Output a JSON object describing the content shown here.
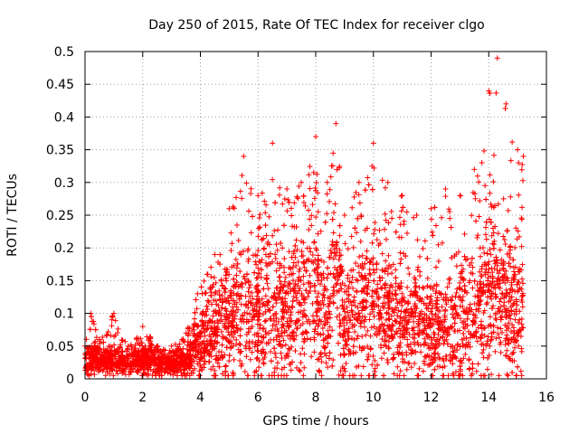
{
  "chart_data": {
    "type": "scatter",
    "title": "Day 250 of 2015, Rate Of TEC Index for receiver clgo",
    "xlabel": "GPS time / hours",
    "ylabel": "ROTI / TECUs",
    "xlim": [
      0,
      16
    ],
    "ylim": [
      0,
      0.5
    ],
    "xticks": [
      "0",
      "2",
      "4",
      "6",
      "8",
      "10",
      "12",
      "14",
      "16"
    ],
    "yticks": [
      "0",
      "0.05",
      "0.1",
      "0.15",
      "0.2",
      "0.25",
      "0.3",
      "0.35",
      "0.4",
      "0.45",
      "0.5"
    ],
    "grid": true,
    "marker": "+",
    "color": "#ff0000",
    "series": [
      {
        "name": "ROTI",
        "envelope": [
          {
            "x": 0.0,
            "median": 0.025,
            "spread": 0.012,
            "max": 0.05
          },
          {
            "x": 0.2,
            "median": 0.03,
            "spread": 0.015,
            "max": 0.1
          },
          {
            "x": 0.5,
            "median": 0.028,
            "spread": 0.012,
            "max": 0.06
          },
          {
            "x": 1.0,
            "median": 0.03,
            "spread": 0.015,
            "max": 0.1
          },
          {
            "x": 1.5,
            "median": 0.022,
            "spread": 0.01,
            "max": 0.05
          },
          {
            "x": 2.0,
            "median": 0.03,
            "spread": 0.015,
            "max": 0.08
          },
          {
            "x": 2.5,
            "median": 0.025,
            "spread": 0.012,
            "max": 0.05
          },
          {
            "x": 3.0,
            "median": 0.022,
            "spread": 0.01,
            "max": 0.05
          },
          {
            "x": 3.5,
            "median": 0.025,
            "spread": 0.012,
            "max": 0.07
          },
          {
            "x": 3.9,
            "median": 0.05,
            "spread": 0.03,
            "max": 0.13
          },
          {
            "x": 4.5,
            "median": 0.07,
            "spread": 0.045,
            "max": 0.19
          },
          {
            "x": 5.0,
            "median": 0.09,
            "spread": 0.06,
            "max": 0.26
          },
          {
            "x": 5.5,
            "median": 0.1,
            "spread": 0.07,
            "max": 0.34
          },
          {
            "x": 6.0,
            "median": 0.1,
            "spread": 0.06,
            "max": 0.28
          },
          {
            "x": 6.5,
            "median": 0.11,
            "spread": 0.07,
            "max": 0.36
          },
          {
            "x": 7.0,
            "median": 0.1,
            "spread": 0.06,
            "max": 0.29
          },
          {
            "x": 7.5,
            "median": 0.12,
            "spread": 0.07,
            "max": 0.3
          },
          {
            "x": 8.0,
            "median": 0.13,
            "spread": 0.08,
            "max": 0.37
          },
          {
            "x": 8.4,
            "median": 0.08,
            "spread": 0.05,
            "max": 0.3
          },
          {
            "x": 8.7,
            "median": 0.15,
            "spread": 0.08,
            "max": 0.39
          },
          {
            "x": 9.0,
            "median": 0.07,
            "spread": 0.05,
            "max": 0.25
          },
          {
            "x": 9.5,
            "median": 0.1,
            "spread": 0.06,
            "max": 0.3
          },
          {
            "x": 10.0,
            "median": 0.12,
            "spread": 0.07,
            "max": 0.36
          },
          {
            "x": 10.5,
            "median": 0.1,
            "spread": 0.06,
            "max": 0.3
          },
          {
            "x": 11.0,
            "median": 0.08,
            "spread": 0.05,
            "max": 0.28
          },
          {
            "x": 11.5,
            "median": 0.09,
            "spread": 0.05,
            "max": 0.25
          },
          {
            "x": 12.0,
            "median": 0.08,
            "spread": 0.05,
            "max": 0.26
          },
          {
            "x": 12.5,
            "median": 0.07,
            "spread": 0.045,
            "max": 0.29
          },
          {
            "x": 13.0,
            "median": 0.08,
            "spread": 0.05,
            "max": 0.28
          },
          {
            "x": 13.5,
            "median": 0.1,
            "spread": 0.06,
            "max": 0.32
          },
          {
            "x": 14.0,
            "median": 0.13,
            "spread": 0.08,
            "max": 0.44
          },
          {
            "x": 14.3,
            "median": 0.14,
            "spread": 0.08,
            "max": 0.49
          },
          {
            "x": 14.6,
            "median": 0.12,
            "spread": 0.07,
            "max": 0.42
          },
          {
            "x": 15.0,
            "median": 0.1,
            "spread": 0.07,
            "max": 0.35
          },
          {
            "x": 15.2,
            "median": 0.12,
            "spread": 0.08,
            "max": 0.34
          }
        ]
      }
    ]
  }
}
